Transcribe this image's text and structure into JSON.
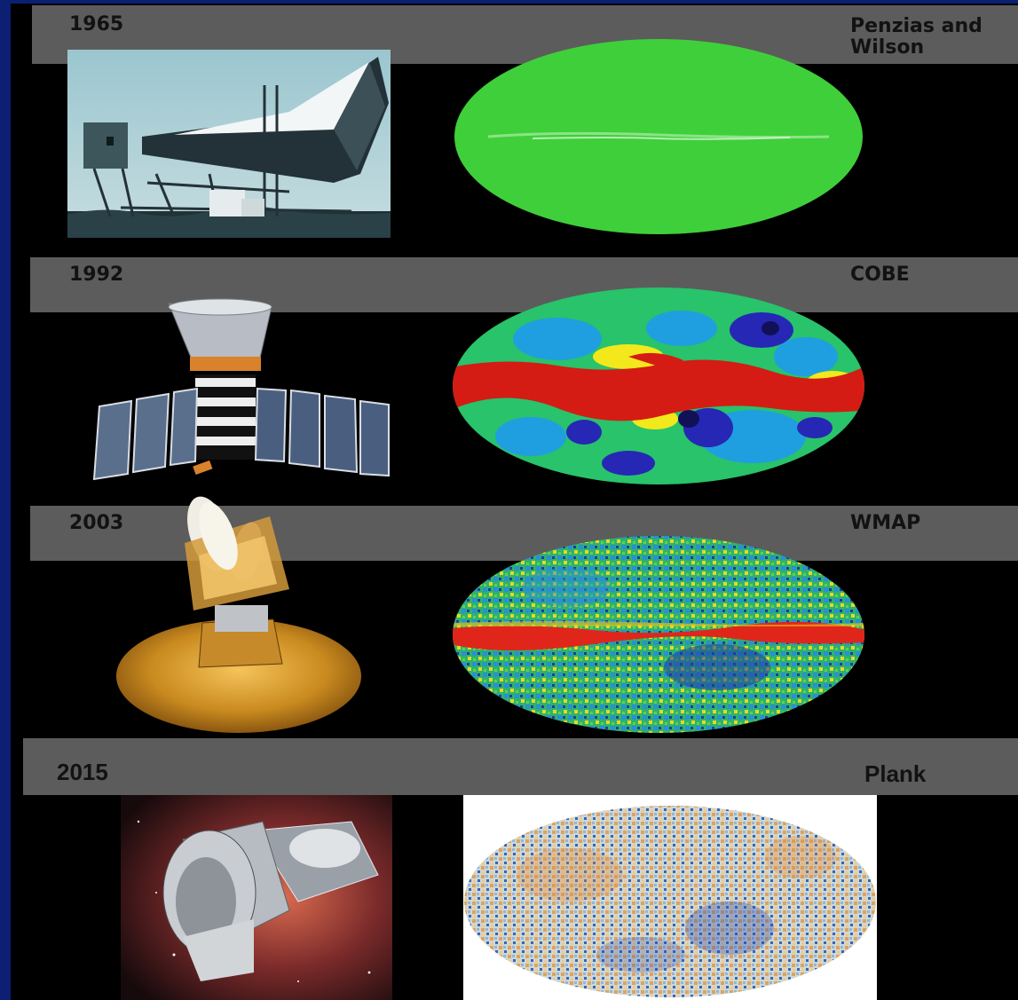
{
  "rows": [
    {
      "year": "1965",
      "mission": "Penzias and\nWilson"
    },
    {
      "year": "1992",
      "mission": "COBE"
    },
    {
      "year": "2003",
      "mission": "WMAP"
    },
    {
      "year": "2015",
      "mission": "Plank"
    }
  ],
  "colors": {
    "page_border": "#0c1f73",
    "slide_bg": "#000000",
    "band": "#5c5c5c",
    "label_text": "#121212",
    "map_1965": "#3fcf3a",
    "galactic_plane": "#d41c14"
  },
  "photos": [
    "horn-antenna-photo",
    "cobe-satellite-image",
    "wmap-satellite-image",
    "planck-satellite-image"
  ],
  "maps": [
    "cmb-map-1965",
    "cmb-map-cobe",
    "cmb-map-wmap",
    "cmb-map-planck"
  ]
}
